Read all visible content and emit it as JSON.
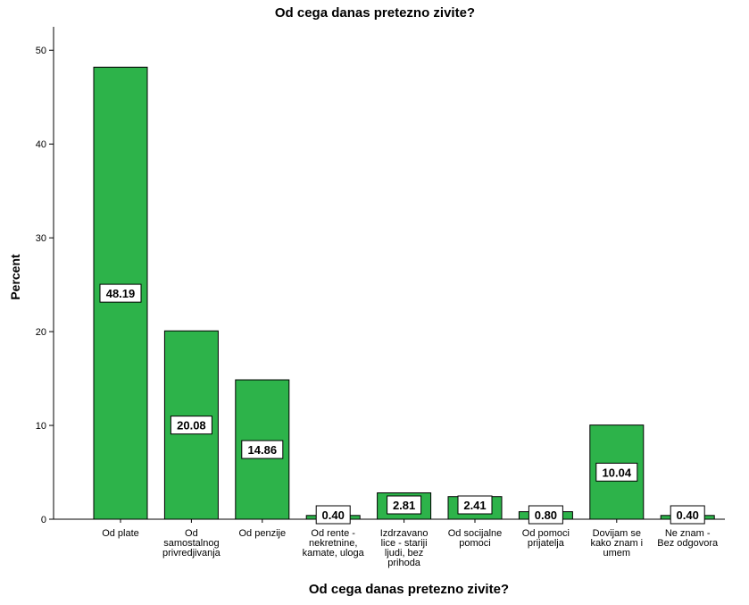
{
  "chart_data": {
    "type": "bar",
    "title": "Od cega danas pretezno zivite?",
    "xlabel": "Od cega danas pretezno zivite?",
    "ylabel": "Percent",
    "ylim": [
      0,
      52.5
    ],
    "yticks": [
      0,
      10,
      20,
      30,
      40,
      50
    ],
    "grid": false,
    "bar_color": "#2db34a",
    "categories": [
      [
        "Od plate"
      ],
      [
        "Od",
        "samostalnog",
        "privredjivanja"
      ],
      [
        "Od penzije"
      ],
      [
        "Od rente -",
        "nekretnine,",
        "kamate, uloga"
      ],
      [
        "Izdrzavano",
        "lice - stariji",
        "ljudi, bez",
        "prihoda"
      ],
      [
        "Od socijalne",
        "pomoci"
      ],
      [
        "Od pomoci",
        "prijatelja"
      ],
      [
        "Dovijam se",
        "kako znam i",
        "umem"
      ],
      [
        "Ne znam -",
        "Bez odgovora"
      ]
    ],
    "values": [
      48.19,
      20.08,
      14.86,
      0.4,
      2.81,
      2.41,
      0.8,
      10.04,
      0.4
    ],
    "data_labels": [
      "48.19",
      "20.08",
      "14.86",
      "0.40",
      "2.81",
      "2.41",
      "0.80",
      "10.04",
      "0.40"
    ]
  }
}
